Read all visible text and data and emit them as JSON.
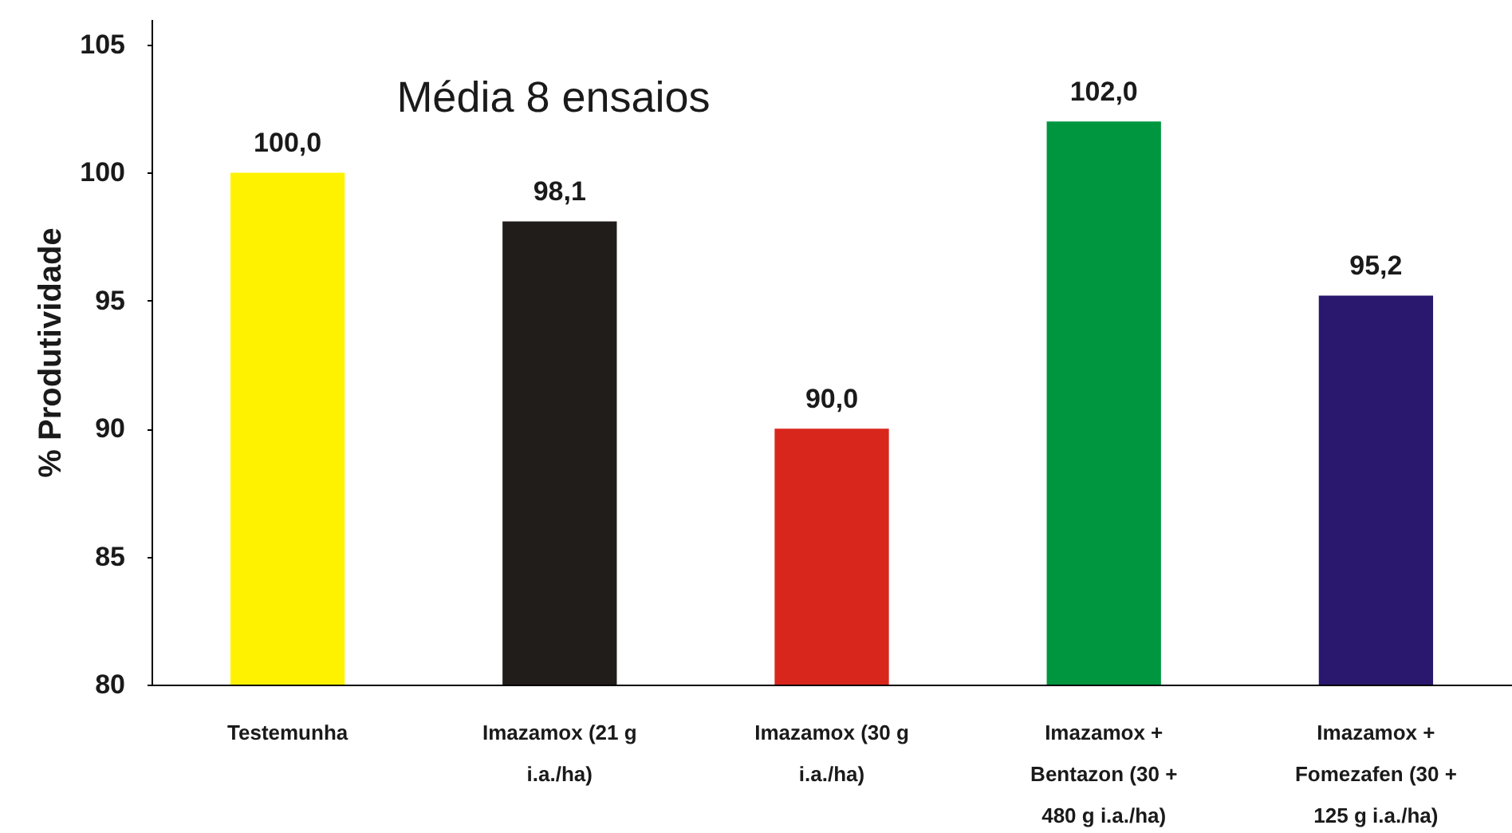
{
  "chart_data": {
    "type": "bar",
    "annotations": [
      "Média 8 ensaios"
    ],
    "ylabel": "% Produtividade",
    "categories": [
      "Testemunha",
      "Imazamox (21 g i.a./ha)",
      "Imazamox (30 g i.a./ha)",
      "Imazamox + Bentazon (30 + 480 g i.a./ha)",
      "Imazamox + Fomezafen (30 + 125 g i.a./ha)"
    ],
    "values": [
      100.0,
      98.1,
      90.0,
      102.0,
      95.2
    ],
    "colors": [
      "#fff200",
      "#211d1a",
      "#d9261c",
      "#00963f",
      "#2a176e"
    ],
    "value_labels": [
      "100,0",
      "98,1",
      "90,0",
      "102,0",
      "95,2"
    ],
    "ylim": [
      80,
      106
    ],
    "yticks": [
      80,
      85,
      90,
      95,
      100,
      105
    ]
  }
}
